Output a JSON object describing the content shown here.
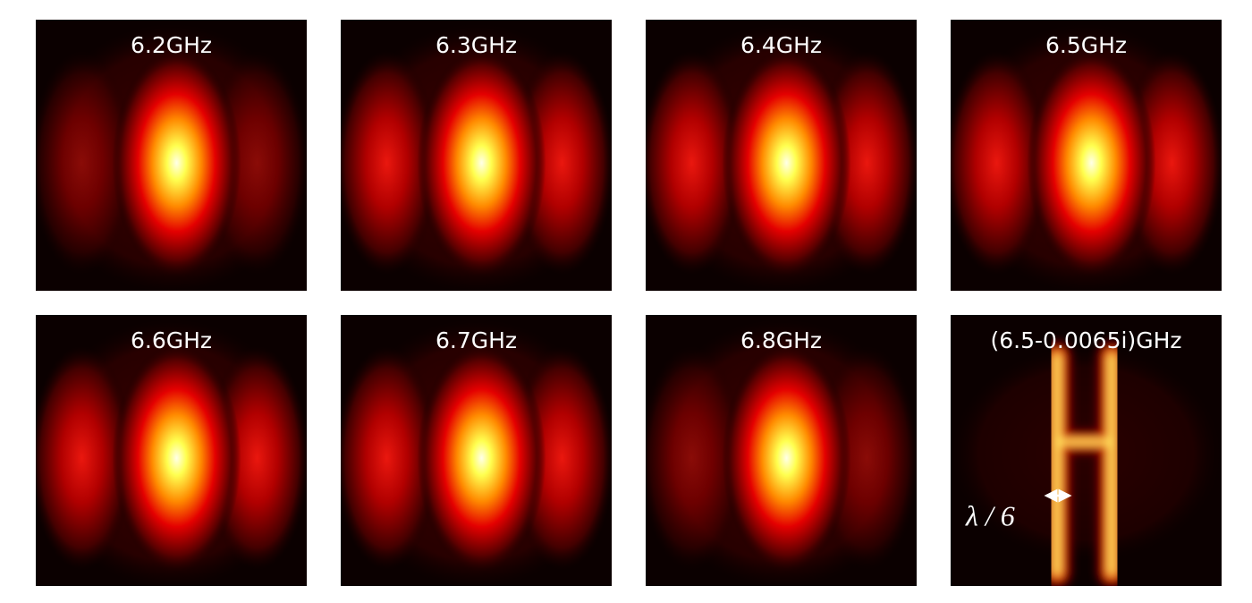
{
  "panels": [
    {
      "label": "6.2GHz"
    },
    {
      "label": "6.3GHz"
    },
    {
      "label": "6.4GHz"
    },
    {
      "label": "6.5GHz"
    },
    {
      "label": "6.6GHz"
    },
    {
      "label": "6.7GHz"
    },
    {
      "label": "6.8GHz"
    },
    {
      "label": "(6.5-0.0065i)GHz"
    }
  ],
  "annotation": "λ / 6"
}
